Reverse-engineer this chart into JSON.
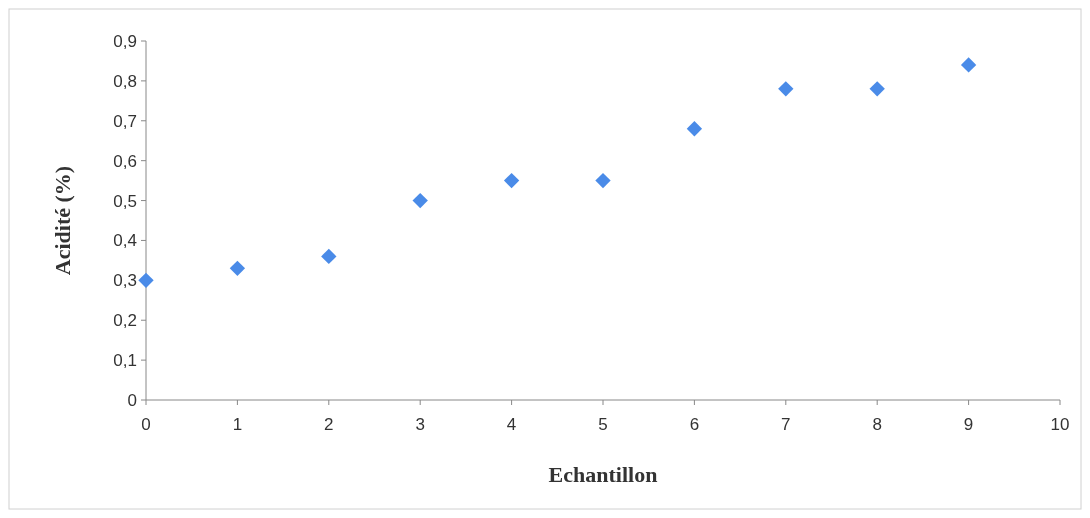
{
  "chart_data": {
    "type": "scatter",
    "xlabel": "Echantillon",
    "ylabel": "Acidité (%)",
    "x": [
      0,
      1,
      2,
      3,
      4,
      5,
      6,
      7,
      8,
      9
    ],
    "values": [
      0.3,
      0.33,
      0.36,
      0.5,
      0.55,
      0.55,
      0.68,
      0.78,
      0.78,
      0.84
    ],
    "color": "#4a8be8",
    "marker": "diamond",
    "grid": false,
    "xlim": [
      0,
      10
    ],
    "xticks": [
      0,
      1,
      2,
      3,
      4,
      5,
      6,
      7,
      8,
      9,
      10
    ],
    "ylim": [
      0,
      0.9
    ],
    "yticks": [
      0,
      {
        "value": 0.1,
        "label": "0,1"
      },
      {
        "value": 0.2,
        "label": "0,2"
      },
      {
        "value": 0.3,
        "label": "0,3"
      },
      {
        "value": 0.4,
        "label": "0,4"
      },
      {
        "value": 0.5,
        "label": "0,5"
      },
      {
        "value": 0.6,
        "label": "0,6"
      },
      {
        "value": 0.7,
        "label": "0,7"
      },
      {
        "value": 0.8,
        "label": "0,8"
      },
      {
        "value": 0.9,
        "label": "0,9"
      }
    ]
  }
}
